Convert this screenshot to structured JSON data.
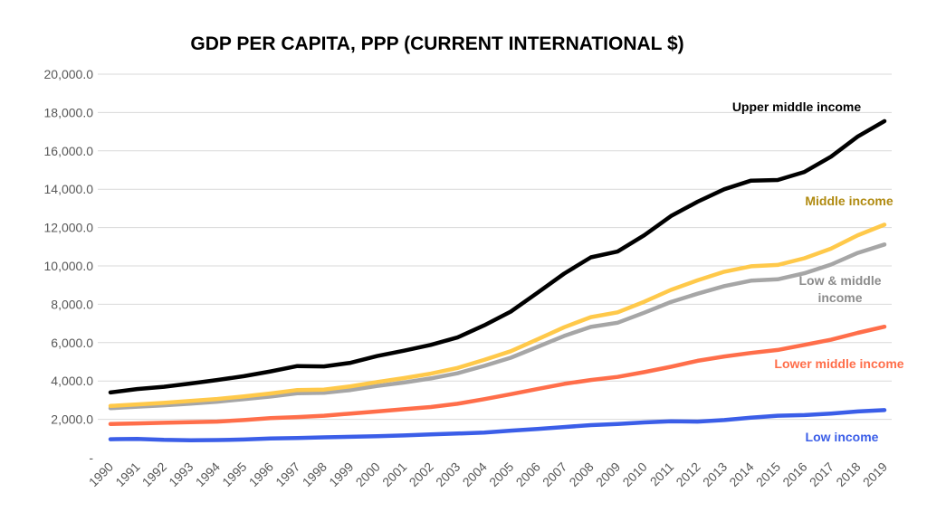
{
  "chart_data": {
    "type": "line",
    "title": "GDP PER CAPITA, PPP (CURRENT INTERNATIONAL $)",
    "xlabel": "",
    "ylabel": "",
    "ylim": [
      0,
      20000
    ],
    "yticks": [
      0,
      2000,
      4000,
      6000,
      8000,
      10000,
      12000,
      14000,
      16000,
      18000,
      20000
    ],
    "ytick_labels": [
      "-",
      "2,000.0",
      "4,000.0",
      "6,000.0",
      "8,000.0",
      "10,000.0",
      "12,000.0",
      "14,000.0",
      "16,000.0",
      "18,000.0",
      "20,000.0"
    ],
    "grid": true,
    "categories": [
      "1990",
      "1991",
      "1992",
      "1993",
      "1994",
      "1995",
      "1996",
      "1997",
      "1998",
      "1999",
      "2000",
      "2001",
      "2002",
      "2003",
      "2004",
      "2005",
      "2006",
      "2007",
      "2008",
      "2009",
      "2010",
      "2011",
      "2012",
      "2013",
      "2014",
      "2015",
      "2016",
      "2017",
      "2018",
      "2019"
    ],
    "series": [
      {
        "name": "Upper middle income",
        "color": "#000000",
        "label_color": "#000000",
        "values": [
          3400,
          3580,
          3700,
          3870,
          4050,
          4250,
          4500,
          4780,
          4760,
          4950,
          5300,
          5580,
          5880,
          6270,
          6900,
          7620,
          8600,
          9600,
          10450,
          10750,
          11600,
          12600,
          13350,
          14000,
          14450,
          14480,
          14900,
          15700,
          16750,
          17550
        ]
      },
      {
        "name": "Middle income",
        "color": "#ffc94a",
        "label_color": "#b08a10",
        "values": [
          2700,
          2780,
          2860,
          2960,
          3060,
          3200,
          3350,
          3530,
          3550,
          3720,
          3950,
          4150,
          4380,
          4680,
          5100,
          5550,
          6170,
          6800,
          7330,
          7580,
          8130,
          8750,
          9250,
          9700,
          9980,
          10050,
          10400,
          10900,
          11600,
          12150
        ]
      },
      {
        "name": "Low & middle income",
        "color": "#a6a6a6",
        "label_color": "#8c8c8c",
        "values": [
          2580,
          2660,
          2730,
          2820,
          2920,
          3050,
          3190,
          3360,
          3380,
          3530,
          3740,
          3920,
          4130,
          4400,
          4790,
          5210,
          5780,
          6350,
          6820,
          7040,
          7560,
          8120,
          8550,
          8950,
          9230,
          9300,
          9620,
          10070,
          10680,
          11120
        ]
      },
      {
        "name": "Lower middle income",
        "color": "#ff6e4a",
        "label_color": "#ff6e4a",
        "values": [
          1760,
          1790,
          1820,
          1850,
          1880,
          1960,
          2060,
          2120,
          2190,
          2300,
          2410,
          2530,
          2640,
          2810,
          3050,
          3310,
          3580,
          3850,
          4050,
          4210,
          4460,
          4740,
          5050,
          5280,
          5460,
          5620,
          5880,
          6150,
          6510,
          6830
        ]
      },
      {
        "name": "Low income",
        "color": "#3b5ee8",
        "label_color": "#3b5ee8",
        "values": [
          960,
          980,
          930,
          910,
          920,
          950,
          1000,
          1030,
          1060,
          1090,
          1120,
          1160,
          1210,
          1260,
          1310,
          1410,
          1500,
          1600,
          1700,
          1760,
          1840,
          1900,
          1880,
          1960,
          2090,
          2190,
          2220,
          2300,
          2410,
          2480
        ]
      }
    ]
  }
}
